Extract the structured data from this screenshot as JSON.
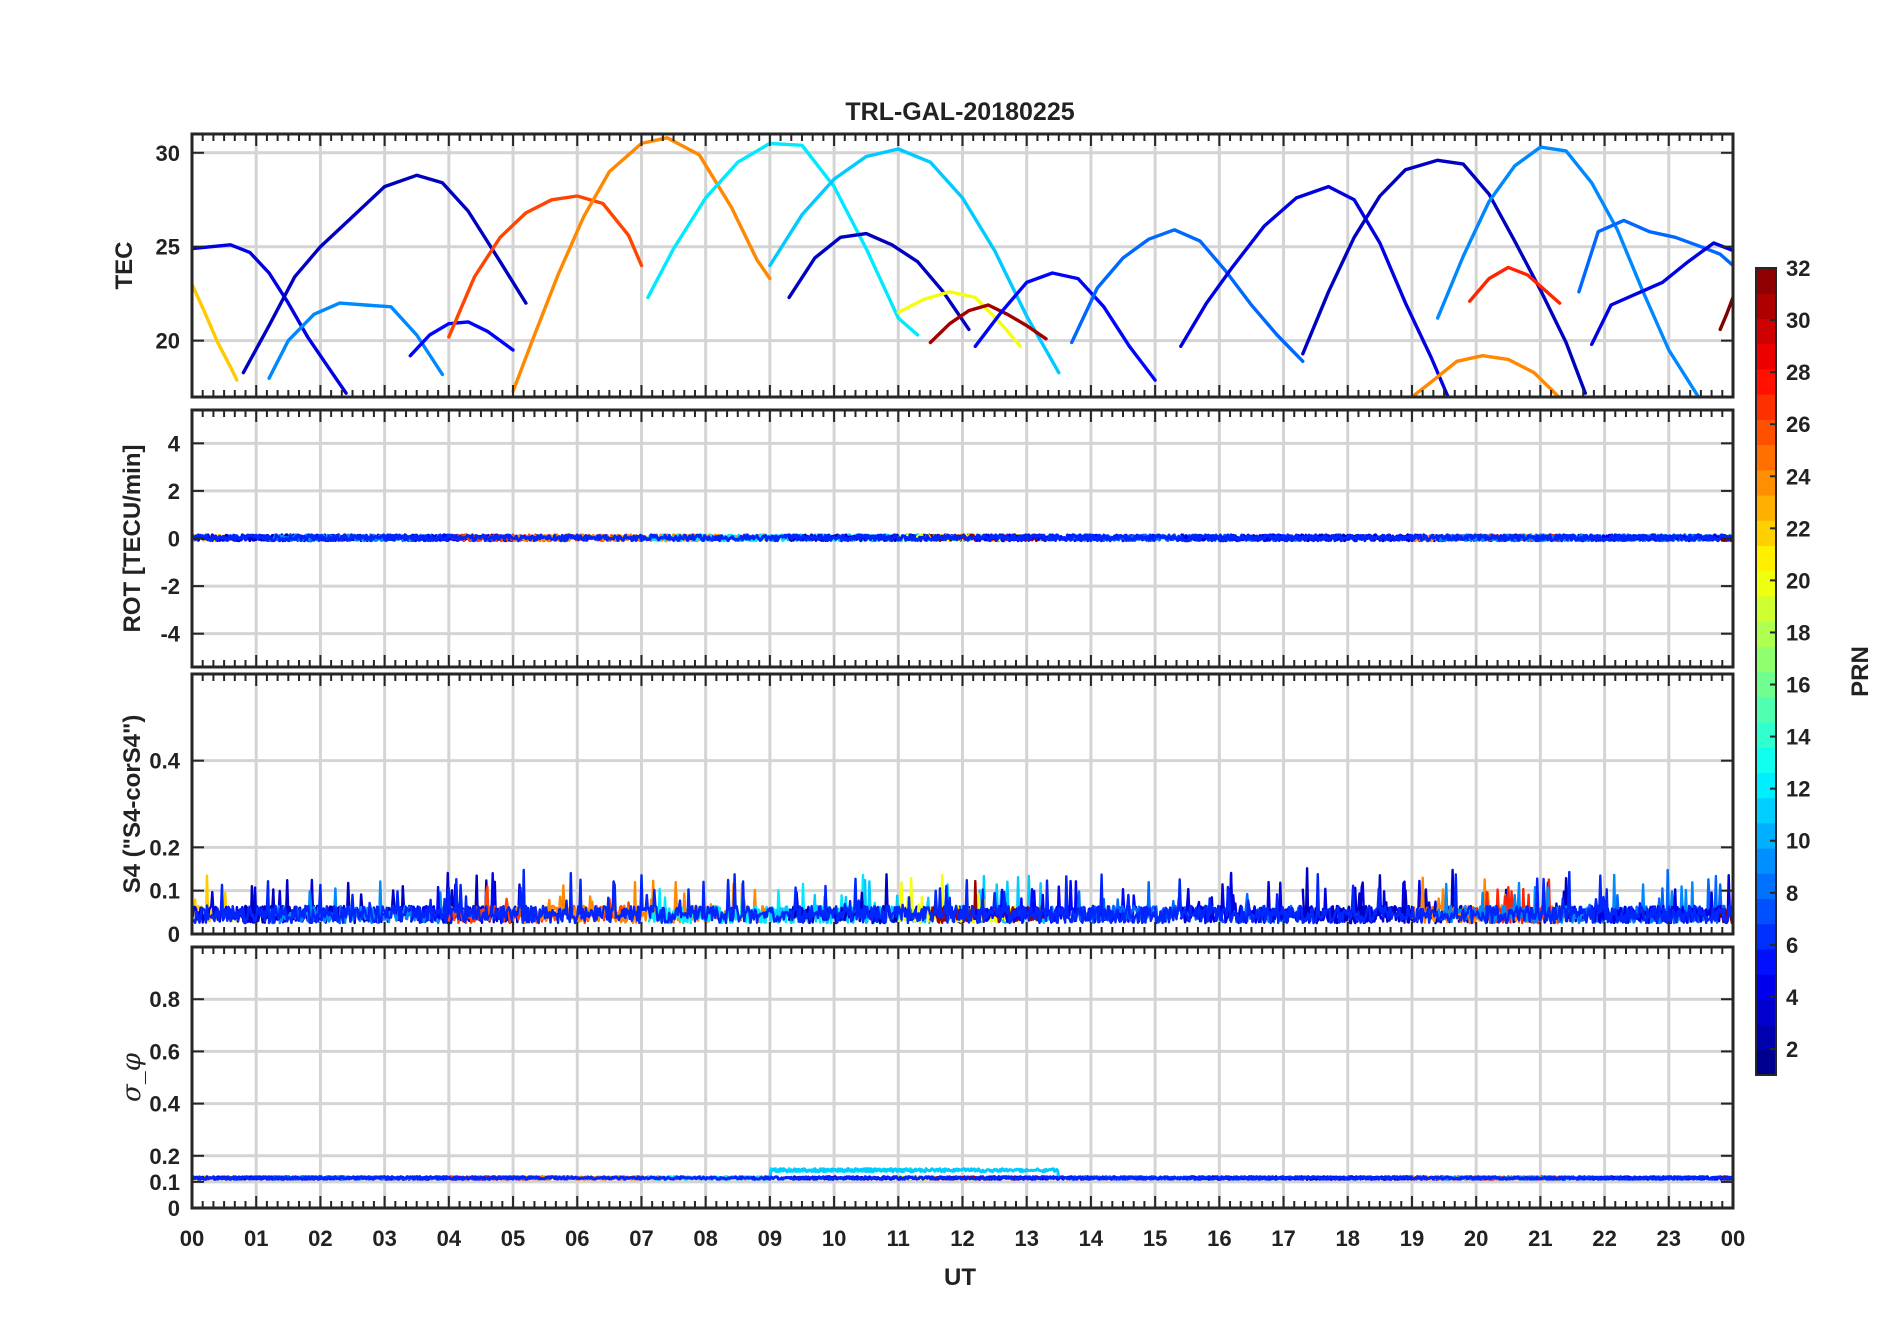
{
  "chart_data": {
    "type": "line",
    "title": "TRL-GAL-20180225",
    "xlabel": "UT",
    "x_ticks": [
      "00",
      "01",
      "02",
      "03",
      "04",
      "05",
      "06",
      "07",
      "08",
      "09",
      "10",
      "11",
      "12",
      "13",
      "14",
      "15",
      "16",
      "17",
      "18",
      "19",
      "20",
      "21",
      "22",
      "23",
      "00"
    ],
    "xlim": [
      0,
      24
    ],
    "grid": true,
    "colorbar": {
      "label": "PRN",
      "range": [
        1,
        32
      ],
      "ticks": [
        "2",
        "4",
        "6",
        "8",
        "10",
        "12",
        "14",
        "16",
        "18",
        "20",
        "22",
        "24",
        "26",
        "28",
        "30",
        "32"
      ],
      "colormap": "jet"
    },
    "panels": [
      {
        "name": "tec",
        "ylabel": "TEC",
        "ylim": [
          17,
          31
        ],
        "yticks": [
          "20",
          "25",
          "30"
        ],
        "ytick_values": [
          20,
          25,
          30
        ],
        "series": [
          {
            "prn": 22,
            "x": [
              0.0,
              0.2,
              0.4,
              0.6,
              0.7
            ],
            "y": [
              23.0,
              21.5,
              19.9,
              18.6,
              17.9
            ]
          },
          {
            "prn": 4,
            "x": [
              0.0,
              0.3,
              0.6,
              0.9,
              1.2,
              1.5,
              1.8,
              2.1,
              2.4
            ],
            "y": [
              24.9,
              25.0,
              25.1,
              24.7,
              23.6,
              22.0,
              20.2,
              18.7,
              17.2
            ]
          },
          {
            "prn": 3,
            "x": [
              0.8,
              1.2,
              1.6,
              2.0,
              2.5,
              3.0,
              3.5,
              3.9,
              4.3,
              4.8,
              5.2
            ],
            "y": [
              18.3,
              20.8,
              23.4,
              25.0,
              26.6,
              28.2,
              28.8,
              28.4,
              26.9,
              24.2,
              22.0
            ]
          },
          {
            "prn": 9,
            "x": [
              1.2,
              1.5,
              1.9,
              2.3,
              2.7,
              3.1,
              3.5,
              3.9
            ],
            "y": [
              18.0,
              20.0,
              21.4,
              22.0,
              21.9,
              21.8,
              20.3,
              18.2
            ]
          },
          {
            "prn": 5,
            "x": [
              3.4,
              3.7,
              4.0,
              4.3,
              4.6,
              5.0
            ],
            "y": [
              19.2,
              20.3,
              20.9,
              21.0,
              20.5,
              19.5
            ]
          },
          {
            "prn": 26,
            "x": [
              4.0,
              4.4,
              4.8,
              5.2,
              5.6,
              6.0,
              6.4,
              6.8,
              7.0
            ],
            "y": [
              20.2,
              23.4,
              25.5,
              26.8,
              27.5,
              27.7,
              27.3,
              25.6,
              24.0
            ]
          },
          {
            "prn": 24,
            "x": [
              5.0,
              5.3,
              5.7,
              6.1,
              6.5,
              7.0,
              7.4,
              7.9,
              8.4,
              8.8,
              9.0
            ],
            "y": [
              17.3,
              20.0,
              23.5,
              26.6,
              29.0,
              30.5,
              30.8,
              29.9,
              27.1,
              24.3,
              23.3
            ]
          },
          {
            "prn": 12,
            "x": [
              7.1,
              7.5,
              8.0,
              8.5,
              9.0,
              9.5,
              10.0,
              10.5,
              11.0,
              11.3
            ],
            "y": [
              22.3,
              24.9,
              27.6,
              29.5,
              30.5,
              30.4,
              28.2,
              24.9,
              21.2,
              20.3
            ]
          },
          {
            "prn": 11,
            "x": [
              9.0,
              9.5,
              10.0,
              10.5,
              11.0,
              11.5,
              12.0,
              12.5,
              13.0,
              13.5
            ],
            "y": [
              24.0,
              26.7,
              28.6,
              29.8,
              30.2,
              29.5,
              27.6,
              24.8,
              21.3,
              18.3
            ]
          },
          {
            "prn": 3,
            "x": [
              9.3,
              9.7,
              10.1,
              10.5,
              10.9,
              11.3,
              11.7,
              12.1
            ],
            "y": [
              22.3,
              24.4,
              25.5,
              25.7,
              25.1,
              24.2,
              22.6,
              20.6
            ]
          },
          {
            "prn": 20,
            "x": [
              11.0,
              11.4,
              11.8,
              12.2,
              12.6,
              12.9
            ],
            "y": [
              21.5,
              22.2,
              22.6,
              22.3,
              20.9,
              19.7
            ]
          },
          {
            "prn": 31,
            "x": [
              11.5,
              11.8,
              12.1,
              12.4,
              12.7,
              13.0,
              13.3
            ],
            "y": [
              19.9,
              20.9,
              21.6,
              21.9,
              21.4,
              20.8,
              20.1
            ]
          },
          {
            "prn": 5,
            "x": [
              12.2,
              12.6,
              13.0,
              13.4,
              13.8,
              14.2,
              14.6,
              15.0
            ],
            "y": [
              19.7,
              21.5,
              23.1,
              23.6,
              23.3,
              21.8,
              19.7,
              17.9
            ]
          },
          {
            "prn": 8,
            "x": [
              13.7,
              14.1,
              14.5,
              14.9,
              15.3,
              15.7,
              16.1,
              16.5,
              16.9,
              17.3
            ],
            "y": [
              19.9,
              22.8,
              24.4,
              25.4,
              25.9,
              25.3,
              23.7,
              21.9,
              20.3,
              18.9
            ]
          },
          {
            "prn": 4,
            "x": [
              15.4,
              15.8,
              16.2,
              16.7,
              17.2,
              17.7,
              18.1,
              18.5,
              18.9,
              19.3,
              19.6
            ],
            "y": [
              19.7,
              22.0,
              23.9,
              26.1,
              27.6,
              28.2,
              27.5,
              25.2,
              22.0,
              19.1,
              16.7
            ]
          },
          {
            "prn": 3,
            "x": [
              17.3,
              17.7,
              18.1,
              18.5,
              18.9,
              19.4,
              19.8,
              20.2,
              20.6,
              21.0,
              21.4,
              21.7
            ],
            "y": [
              19.3,
              22.6,
              25.5,
              27.7,
              29.1,
              29.6,
              29.4,
              27.8,
              25.3,
              22.7,
              19.9,
              17.2
            ]
          },
          {
            "prn": 24,
            "x": [
              19.0,
              19.3,
              19.7,
              20.1,
              20.5,
              20.9,
              21.2,
              21.4
            ],
            "y": [
              17.0,
              17.8,
              18.9,
              19.2,
              19.0,
              18.3,
              17.3,
              16.6
            ]
          },
          {
            "prn": 27,
            "x": [
              19.9,
              20.2,
              20.5,
              20.8,
              21.1,
              21.3
            ],
            "y": [
              22.1,
              23.3,
              23.9,
              23.5,
              22.6,
              22.0
            ]
          },
          {
            "prn": 9,
            "x": [
              19.4,
              19.8,
              20.2,
              20.6,
              21.0,
              21.4,
              21.8,
              22.2,
              22.6,
              23.0,
              23.5
            ],
            "y": [
              21.2,
              24.5,
              27.4,
              29.3,
              30.3,
              30.1,
              28.4,
              25.9,
              22.6,
              19.5,
              16.8
            ]
          },
          {
            "prn": 8,
            "x": [
              21.6,
              21.9,
              22.3,
              22.7,
              23.1,
              23.5,
              23.8,
              24.0
            ],
            "y": [
              22.6,
              25.8,
              26.4,
              25.8,
              25.5,
              25.0,
              24.6,
              24.0
            ]
          },
          {
            "prn": 4,
            "x": [
              21.8,
              22.1,
              22.5,
              22.9,
              23.3,
              23.7,
              24.0
            ],
            "y": [
              19.8,
              21.9,
              22.5,
              23.1,
              24.2,
              25.2,
              24.8
            ]
          },
          {
            "prn": 32,
            "x": [
              23.8,
              23.9,
              24.0
            ],
            "y": [
              20.6,
              21.4,
              22.3
            ]
          }
        ]
      },
      {
        "name": "rot",
        "ylabel": "ROT [TECU/min]",
        "ylim": [
          -5.4,
          5.4
        ],
        "yticks": [
          "-4",
          "-2",
          "0",
          "2",
          "4"
        ],
        "ytick_values": [
          -4,
          -2,
          0,
          2,
          4
        ],
        "series_note": "All satellites stay near 0 TECU/min (within about ±0.2) throughout the day."
      },
      {
        "name": "s4",
        "ylabel": "S4 (\"S4-corS4\")",
        "ylim": [
          0,
          0.6
        ],
        "yticks": [
          "0",
          "0.1",
          "0.2",
          "0.4"
        ],
        "ytick_values": [
          0,
          0.1,
          0.2,
          0.4
        ],
        "series_note": "Noise-like values mostly 0.02–0.08 with spikes up to about 0.15."
      },
      {
        "name": "sigma_phi",
        "ylabel": "σ_φ",
        "ylim": [
          0,
          1
        ],
        "yticks": [
          "0",
          "0.1",
          "0.2",
          "0.4",
          "0.6",
          "0.8"
        ],
        "ytick_values": [
          0,
          0.1,
          0.2,
          0.4,
          0.6,
          0.8
        ],
        "series_note": "Nearly flat around 0.10–0.13 for all satellites; PRN 11–13 up to about 0.15 between 09 and 13 UT."
      }
    ]
  }
}
